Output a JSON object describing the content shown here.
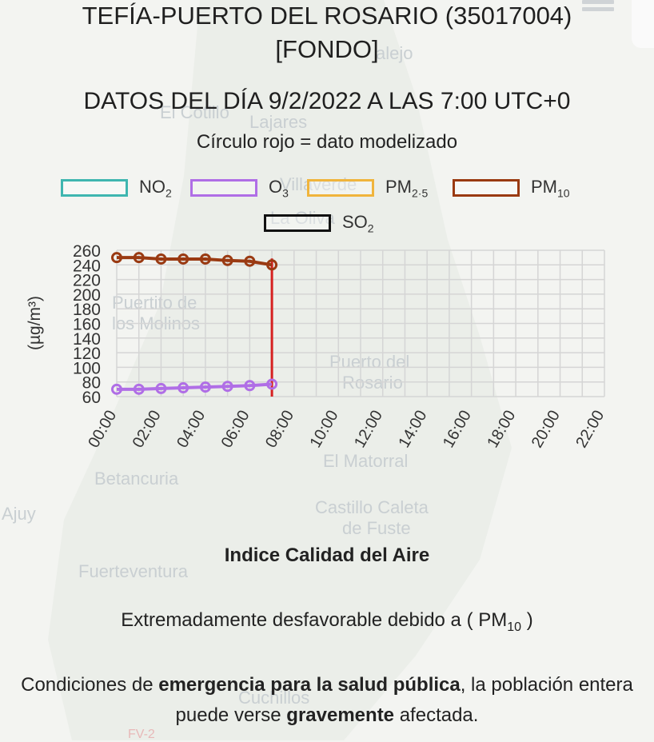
{
  "header": {
    "title_line1": "TEFÍA-PUERTO DEL ROSARIO (35017004)",
    "title_line2": "[FONDO]",
    "date_line": "DATOS DEL DÍA 9/2/2022 A LAS 7:00 UTC+0",
    "note": "Círculo rojo = dato modelizado"
  },
  "legend": [
    {
      "key": "NO2",
      "base": "NO",
      "sub": "2",
      "color": "#3fb6b0"
    },
    {
      "key": "O3",
      "base": "O",
      "sub": "3",
      "color": "#b06ee6"
    },
    {
      "key": "PM25",
      "base": "PM",
      "sub": "2·5",
      "color": "#f0b43c"
    },
    {
      "key": "PM10",
      "base": "PM",
      "sub": "10",
      "color": "#9a3a12"
    },
    {
      "key": "SO2",
      "base": "SO",
      "sub": "2",
      "color": "#111111"
    }
  ],
  "chart_data": {
    "type": "line",
    "ylabel": "(µg/m³)",
    "ylim": [
      60,
      260
    ],
    "y_ticks": [
      60,
      80,
      100,
      120,
      140,
      160,
      180,
      200,
      220,
      240,
      260
    ],
    "x_hours": [
      0,
      1,
      2,
      3,
      4,
      5,
      6,
      7,
      8,
      9,
      10,
      11,
      12,
      13,
      14,
      15,
      16,
      17,
      18,
      19,
      20,
      21,
      22
    ],
    "x_tick_labels": [
      "00:00",
      "02:00",
      "04:00",
      "06:00",
      "08:00",
      "10:00",
      "12:00",
      "14:00",
      "16:00",
      "18:00",
      "20:00",
      "22:00"
    ],
    "current_hour": 7,
    "grid": true,
    "series": [
      {
        "name": "PM10",
        "color": "#9a3a12",
        "x": [
          0,
          1,
          2,
          3,
          4,
          5,
          6,
          7
        ],
        "values": [
          250,
          250,
          248,
          248,
          248,
          246,
          245,
          240
        ]
      },
      {
        "name": "O3",
        "color": "#b06ee6",
        "x": [
          0,
          1,
          2,
          3,
          4,
          5,
          6,
          7
        ],
        "values": [
          70,
          70,
          71,
          72,
          73,
          74,
          75,
          77
        ]
      }
    ]
  },
  "aqi": {
    "title": "Indice Calidad del Aire",
    "status_prefix": "Extremadamente desfavorable debido a ( ",
    "pollutant_base": "PM",
    "pollutant_sub": "10",
    "status_suffix": " )",
    "health_p1": "Condiciones de ",
    "health_b1": "emergencia para la salud pública",
    "health_p2": ", la población entera puede verse ",
    "health_b2": "gravemente",
    "health_p3": " afectada."
  },
  "map_labels": [
    "alejo",
    "El Cotillo",
    "Lajares",
    "Villaverde",
    "La Oliva",
    "Puertito de",
    "los Molinos",
    "Puerto del",
    "Rosario",
    "El Matorral",
    "Betancuria",
    "Ajuy",
    "Castillo Caleta",
    "de Fuste",
    "Fuerteventura",
    "Cuchillos",
    "FV-2"
  ]
}
